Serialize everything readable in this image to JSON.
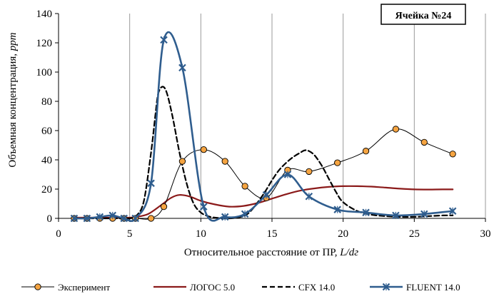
{
  "chart_data": {
    "type": "line",
    "badge": "Ячейка №24",
    "xlabel_main": "Относительное расстояние от ПР, ",
    "xlabel_italic": "L/dг",
    "ylabel_main": "Объемная концентрация, ",
    "ylabel_italic": "ppm",
    "xlim": [
      0,
      30
    ],
    "ylim": [
      0,
      140
    ],
    "xticks": [
      0,
      5,
      10,
      15,
      20,
      25,
      30
    ],
    "yticks": [
      0,
      20,
      40,
      60,
      80,
      100,
      120,
      140
    ],
    "grid": {
      "x": true,
      "y": false
    },
    "legend_position": "bottom",
    "series": [
      {
        "name": "Эксперимент",
        "style": "thin-line-circle-markers",
        "color": "#000000",
        "marker_fill": "#f5a441",
        "x": [
          1.1,
          2.0,
          2.9,
          3.8,
          4.6,
          5.4,
          6.5,
          7.4,
          8.7,
          10.2,
          11.7,
          13.1,
          14.6,
          16.1,
          17.6,
          19.6,
          21.6,
          23.7,
          25.7,
          27.7
        ],
        "y": [
          0,
          0,
          0,
          0,
          0,
          0,
          0,
          8,
          39,
          47,
          39,
          22,
          14,
          33,
          32,
          38,
          46,
          61,
          52,
          44
        ]
      },
      {
        "name": "ЛОГОС 5.0",
        "style": "solid",
        "color": "#8b1a1a",
        "x": [
          1,
          2,
          3,
          4,
          5,
          5.5,
          6.3,
          7.2,
          7.9,
          8.5,
          9.2,
          10,
          11,
          12,
          13,
          14,
          15,
          16,
          17,
          18,
          19,
          20,
          21,
          22,
          23,
          24,
          25,
          26,
          27,
          27.7
        ],
        "y": [
          0.5,
          0.5,
          0.5,
          0.5,
          0.5,
          1,
          3,
          9,
          14,
          16,
          15,
          12,
          9.5,
          8,
          8.5,
          10.5,
          13.5,
          16.5,
          19,
          20.5,
          21.5,
          22,
          22,
          21.7,
          21,
          20.3,
          19.8,
          19.7,
          19.8,
          19.8
        ]
      },
      {
        "name": "CFX 14.0",
        "style": "dashed",
        "color": "#000000",
        "x": [
          1,
          2,
          3,
          4,
          5,
          5.5,
          6.0,
          6.5,
          6.8,
          7.0,
          7.3,
          7.6,
          8.0,
          8.5,
          9.0,
          9.5,
          10.0,
          10.5,
          11.0,
          12.0,
          13.0,
          13.5,
          14.0,
          14.5,
          15.0,
          15.5,
          16.0,
          16.5,
          17.0,
          17.3,
          17.6,
          18.0,
          18.5,
          19.0,
          19.5,
          20.0,
          21,
          22,
          23,
          24,
          25,
          26,
          27,
          27.7
        ],
        "y": [
          0,
          0,
          0,
          0,
          0,
          2,
          12,
          45,
          70,
          85,
          90,
          86,
          70,
          45,
          24,
          10,
          4,
          1.5,
          0.5,
          0,
          1.5,
          5,
          11,
          18,
          26,
          33,
          38,
          42,
          45,
          46.5,
          46,
          43,
          36,
          27,
          18,
          11,
          5,
          2.5,
          1.5,
          1,
          1,
          1.5,
          2,
          2
        ]
      },
      {
        "name": "FLUENT 14.0",
        "style": "thick-line-x-markers",
        "color": "#2f5d8e",
        "x": [
          1.1,
          2.0,
          2.9,
          3.8,
          4.6,
          5.4,
          6.5,
          7.4,
          8.7,
          10.2,
          11.7,
          13.1,
          14.6,
          16.1,
          17.6,
          19.6,
          21.6,
          23.7,
          25.7,
          27.7
        ],
        "y": [
          0,
          0,
          1,
          2,
          0,
          0,
          24,
          122,
          103,
          8,
          1,
          3,
          16,
          30,
          15,
          6,
          4,
          2,
          3,
          5
        ]
      }
    ]
  }
}
